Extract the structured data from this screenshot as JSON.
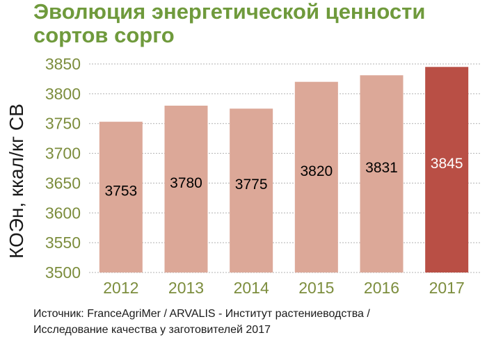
{
  "title_line1": "Эволюция энергетической ценности",
  "title_line2": "сортов сорго",
  "source_line1": "Источник: FranceAgriMer / ARVALIS - Институт растениеводства /",
  "source_line2": "Исследование качества у заготовителей 2017",
  "colors": {
    "title": "#6f9a3c",
    "bar": "#dca898",
    "bar_highlight": "#b94f45",
    "tick": "#7c8d3d",
    "grid": "#b0b0b0"
  },
  "chart_data": {
    "type": "bar",
    "title": "Эволюция энергетической ценности сортов сорго",
    "xlabel": "",
    "ylabel": "КОЭн, ккал/кг СВ",
    "categories": [
      "2012",
      "2013",
      "2014",
      "2015",
      "2016",
      "2017"
    ],
    "values": [
      3753,
      3780,
      3775,
      3820,
      3831,
      3845
    ],
    "value_labels": [
      "3753",
      "3780",
      "3775",
      "3820",
      "3831",
      "3845"
    ],
    "highlight_index": 5,
    "ylim": [
      3500,
      3850
    ],
    "yticks": [
      "3500",
      "3550",
      "3600",
      "3650",
      "3700",
      "3750",
      "3800",
      "3850"
    ],
    "grid": true,
    "legend": "none"
  }
}
